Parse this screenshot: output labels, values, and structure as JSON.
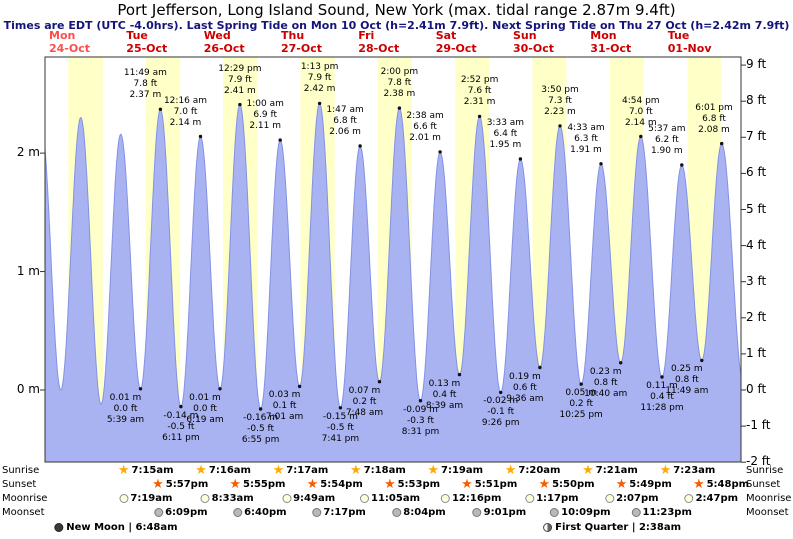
{
  "title": "Port Jefferson, Long Island Sound, New York (max. tidal range 2.87m 9.4ft)",
  "subtitle": "Times are EDT (UTC -4.0hrs). Last Spring Tide on Mon 10 Oct (h=2.41m 7.9ft). Next Spring Tide on Thu 27 Oct (h=2.42m 7.9ft)",
  "colors": {
    "daylight_band": "#ffffc8",
    "night_band": "#ffffff",
    "tide_fill": "#a9b3f1",
    "tide_stroke": "#8292e4",
    "day_label": "#cc0000",
    "day_label_current": "#ff4d4d",
    "subtitle_text": "#14147a",
    "axis": "#333333"
  },
  "chart_data": {
    "type": "area",
    "title": "Tide height curve",
    "x_range_hours": [
      0,
      216
    ],
    "y_range_m": [
      -0.61,
      2.74
    ],
    "grid": false,
    "x_axis": {
      "days": [
        {
          "name": "Mon",
          "date": "24-Oct"
        },
        {
          "name": "Tue",
          "date": "25-Oct"
        },
        {
          "name": "Wed",
          "date": "26-Oct"
        },
        {
          "name": "Thu",
          "date": "27-Oct"
        },
        {
          "name": "Fri",
          "date": "28-Oct"
        },
        {
          "name": "Sat",
          "date": "29-Oct"
        },
        {
          "name": "Sun",
          "date": "30-Oct"
        },
        {
          "name": "Mon",
          "date": "31-Oct"
        },
        {
          "name": "Tue",
          "date": "01-Nov"
        }
      ]
    },
    "y_axis_left": {
      "unit": "m",
      "ticks": [
        {
          "v": 0,
          "label": "0 m"
        },
        {
          "v": 1,
          "label": "1 m"
        },
        {
          "v": 2,
          "label": "2 m"
        }
      ]
    },
    "y_axis_right": {
      "unit": "ft",
      "ticks": [
        {
          "v": -2,
          "label": "-2 ft"
        },
        {
          "v": -1,
          "label": "-1 ft"
        },
        {
          "v": 0,
          "label": "0 ft"
        },
        {
          "v": 1,
          "label": "1 ft"
        },
        {
          "v": 2,
          "label": "2 ft"
        },
        {
          "v": 3,
          "label": "3 ft"
        },
        {
          "v": 4,
          "label": "4 ft"
        },
        {
          "v": 5,
          "label": "5 ft"
        },
        {
          "v": 6,
          "label": "6 ft"
        },
        {
          "v": 7,
          "label": "7 ft"
        },
        {
          "v": 8,
          "label": "8 ft"
        },
        {
          "v": 9,
          "label": "9 ft"
        }
      ]
    },
    "extremes": [
      {
        "t": -1.2,
        "height_m": 2.25,
        "kind": "high",
        "labeled": false
      },
      {
        "t": 4.9,
        "height_m": 0.0,
        "kind": "low",
        "labeled": false
      },
      {
        "t": 11.1,
        "height_m": 2.3,
        "kind": "high",
        "labeled": false
      },
      {
        "t": 17.4,
        "height_m": -0.12,
        "kind": "low",
        "labeled": false
      },
      {
        "t": 23.5,
        "height_m": 2.16,
        "kind": "high",
        "labeled": false
      },
      {
        "t": 29.65,
        "height_m": 0.01,
        "kind": "low",
        "labeled": true,
        "time": "5:39 am",
        "ft": "0.0 ft",
        "m": "0.01 m"
      },
      {
        "t": 35.82,
        "height_m": 2.37,
        "kind": "high",
        "labeled": true,
        "time": "11:49 am",
        "ft": "7.8 ft",
        "m": "2.37 m"
      },
      {
        "t": 42.18,
        "height_m": -0.14,
        "kind": "low",
        "labeled": true,
        "time": "6:11 pm",
        "ft": "-0.5 ft",
        "m": "-0.14 m"
      },
      {
        "t": 48.27,
        "height_m": 2.14,
        "kind": "high",
        "labeled": true,
        "time": "12:16 am",
        "ft": "7.0 ft",
        "m": "2.14 m"
      },
      {
        "t": 54.32,
        "height_m": 0.01,
        "kind": "low",
        "labeled": true,
        "time": "6:19 am",
        "ft": "0.0 ft",
        "m": "0.01 m"
      },
      {
        "t": 60.48,
        "height_m": 2.41,
        "kind": "high",
        "labeled": true,
        "time": "12:29 pm",
        "ft": "7.9 ft",
        "m": "2.41 m"
      },
      {
        "t": 66.92,
        "height_m": -0.16,
        "kind": "low",
        "labeled": true,
        "time": "6:55 pm",
        "ft": "-0.5 ft",
        "m": "-0.16 m"
      },
      {
        "t": 73.0,
        "height_m": 2.11,
        "kind": "high",
        "labeled": true,
        "time": "1:00 am",
        "ft": "6.9 ft",
        "m": "2.11 m"
      },
      {
        "t": 79.02,
        "height_m": 0.03,
        "kind": "low",
        "labeled": true,
        "time": "7:01 am",
        "ft": "0.1 ft",
        "m": "0.03 m"
      },
      {
        "t": 85.22,
        "height_m": 2.42,
        "kind": "high",
        "labeled": true,
        "time": "1:13 pm",
        "ft": "7.9 ft",
        "m": "2.42 m"
      },
      {
        "t": 91.68,
        "height_m": -0.15,
        "kind": "low",
        "labeled": true,
        "time": "7:41 pm",
        "ft": "-0.5 ft",
        "m": "-0.15 m"
      },
      {
        "t": 97.78,
        "height_m": 2.06,
        "kind": "high",
        "labeled": true,
        "time": "1:47 am",
        "ft": "6.8 ft",
        "m": "2.06 m"
      },
      {
        "t": 103.8,
        "height_m": 0.07,
        "kind": "low",
        "labeled": true,
        "time": "7:48 am",
        "ft": "0.2 ft",
        "m": "0.07 m"
      },
      {
        "t": 110.0,
        "height_m": 2.38,
        "kind": "high",
        "labeled": true,
        "time": "2:00 pm",
        "ft": "7.8 ft",
        "m": "2.38 m"
      },
      {
        "t": 116.52,
        "height_m": -0.09,
        "kind": "low",
        "labeled": true,
        "time": "8:31 pm",
        "ft": "-0.3 ft",
        "m": "-0.09 m"
      },
      {
        "t": 122.63,
        "height_m": 2.01,
        "kind": "high",
        "labeled": true,
        "time": "2:38 am",
        "ft": "6.6 ft",
        "m": "2.01 m"
      },
      {
        "t": 128.65,
        "height_m": 0.13,
        "kind": "low",
        "labeled": true,
        "time": "8:39 am",
        "ft": "0.4 ft",
        "m": "0.13 m"
      },
      {
        "t": 134.87,
        "height_m": 2.31,
        "kind": "high",
        "labeled": true,
        "time": "2:52 pm",
        "ft": "7.6 ft",
        "m": "2.31 m"
      },
      {
        "t": 141.43,
        "height_m": -0.02,
        "kind": "low",
        "labeled": true,
        "time": "9:26 pm",
        "ft": "-0.1 ft",
        "m": "-0.02 m"
      },
      {
        "t": 147.55,
        "height_m": 1.95,
        "kind": "high",
        "labeled": true,
        "time": "3:33 am",
        "ft": "6.4 ft",
        "m": "1.95 m"
      },
      {
        "t": 153.6,
        "height_m": 0.19,
        "kind": "low",
        "labeled": true,
        "time": "9:36 am",
        "ft": "0.6 ft",
        "m": "0.19 m"
      },
      {
        "t": 159.83,
        "height_m": 2.23,
        "kind": "high",
        "labeled": true,
        "time": "3:50 pm",
        "ft": "7.3 ft",
        "m": "2.23 m"
      },
      {
        "t": 166.42,
        "height_m": 0.05,
        "kind": "low",
        "labeled": true,
        "time": "10:25 pm",
        "ft": "0.2 ft",
        "m": "0.05 m"
      },
      {
        "t": 172.55,
        "height_m": 1.91,
        "kind": "high",
        "labeled": true,
        "time": "4:33 am",
        "ft": "6.3 ft",
        "m": "1.91 m"
      },
      {
        "t": 178.67,
        "height_m": 0.23,
        "kind": "low",
        "labeled": true,
        "time": "10:40 am",
        "ft": "0.8 ft",
        "m": "0.23 m"
      },
      {
        "t": 184.9,
        "height_m": 2.14,
        "kind": "high",
        "labeled": true,
        "time": "4:54 pm",
        "ft": "7.0 ft",
        "m": "2.14 m"
      },
      {
        "t": 191.47,
        "height_m": 0.11,
        "kind": "low",
        "labeled": true,
        "time": "11:28 pm",
        "ft": "0.4 ft",
        "m": "0.11 m"
      },
      {
        "t": 197.62,
        "height_m": 1.9,
        "kind": "high",
        "labeled": true,
        "time": "5:37 am",
        "ft": "6.2 ft",
        "m": "1.90 m"
      },
      {
        "t": 203.82,
        "height_m": 0.25,
        "kind": "low",
        "labeled": true,
        "time": "11:49 am",
        "ft": "0.8 ft",
        "m": "0.25 m"
      },
      {
        "t": 210.02,
        "height_m": 2.08,
        "kind": "high",
        "labeled": true,
        "time": "6:01 pm",
        "ft": "6.8 ft",
        "m": "2.08 m"
      },
      {
        "t": 216.8,
        "height_m": 0.05,
        "kind": "low",
        "labeled": false
      }
    ]
  },
  "sun_moon": {
    "rows": [
      {
        "id": "sunrise",
        "label": "Sunrise",
        "icon": "sunrise-star-icon",
        "events": [
          {
            "day": 1,
            "time": "7:15am"
          },
          {
            "day": 2,
            "time": "7:16am"
          },
          {
            "day": 3,
            "time": "7:17am"
          },
          {
            "day": 4,
            "time": "7:18am"
          },
          {
            "day": 5,
            "time": "7:19am"
          },
          {
            "day": 6,
            "time": "7:20am"
          },
          {
            "day": 7,
            "time": "7:21am"
          },
          {
            "day": 8,
            "time": "7:23am"
          }
        ]
      },
      {
        "id": "sunset",
        "label": "Sunset",
        "icon": "sunset-star-icon",
        "events": [
          {
            "day": 1,
            "time": "5:57pm"
          },
          {
            "day": 2,
            "time": "5:55pm"
          },
          {
            "day": 3,
            "time": "5:54pm"
          },
          {
            "day": 4,
            "time": "5:53pm"
          },
          {
            "day": 5,
            "time": "5:51pm"
          },
          {
            "day": 6,
            "time": "5:50pm"
          },
          {
            "day": 7,
            "time": "5:49pm"
          },
          {
            "day": 8,
            "time": "5:48pm"
          }
        ]
      },
      {
        "id": "moonrise",
        "label": "Moonrise",
        "icon": "moonrise-circle-icon",
        "events": [
          {
            "day": 1,
            "time": "7:19am"
          },
          {
            "day": 2,
            "time": "8:33am"
          },
          {
            "day": 3,
            "time": "9:49am"
          },
          {
            "day": 4,
            "time": "11:05am"
          },
          {
            "day": 5,
            "time": "12:16pm"
          },
          {
            "day": 6,
            "time": "1:17pm"
          },
          {
            "day": 7,
            "time": "2:07pm"
          },
          {
            "day": 8,
            "time": "2:47pm"
          }
        ]
      },
      {
        "id": "moonset",
        "label": "Moonset",
        "icon": "moonset-circle-icon",
        "events": [
          {
            "day": 1,
            "time": "6:09pm"
          },
          {
            "day": 2,
            "time": "6:40pm"
          },
          {
            "day": 3,
            "time": "7:17pm"
          },
          {
            "day": 4,
            "time": "8:04pm"
          },
          {
            "day": 5,
            "time": "9:01pm"
          },
          {
            "day": 6,
            "time": "10:09pm"
          },
          {
            "day": 7,
            "time": "11:23pm"
          }
        ]
      }
    ],
    "phases": [
      {
        "label": "New Moon",
        "time": "6:48am",
        "display": "New Moon | 6:48am",
        "t": 22,
        "icon": "new-moon-icon"
      },
      {
        "label": "First Quarter",
        "time": "2:38am",
        "display": "First Quarter | 2:38am",
        "t": 176,
        "icon": "first-quarter-icon"
      }
    ]
  }
}
